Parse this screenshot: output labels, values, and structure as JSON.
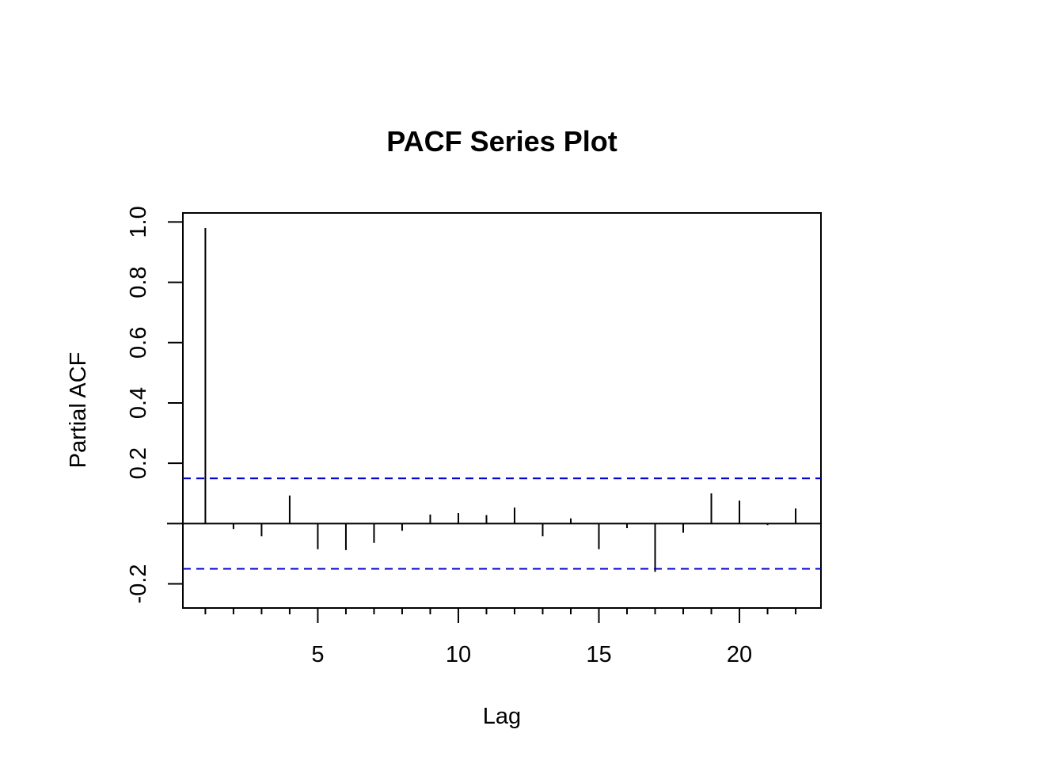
{
  "chart_data": {
    "type": "bar",
    "title": "PACF Series Plot",
    "xlabel": "Lag",
    "ylabel": "Partial ACF",
    "lags": [
      1,
      2,
      3,
      4,
      5,
      6,
      7,
      8,
      9,
      10,
      11,
      12,
      13,
      14,
      15,
      16,
      17,
      18,
      19,
      20,
      21,
      22
    ],
    "values": [
      0.98,
      -0.018,
      -0.042,
      0.093,
      -0.085,
      -0.088,
      -0.064,
      -0.024,
      0.03,
      0.035,
      0.028,
      0.053,
      -0.042,
      0.017,
      -0.085,
      -0.015,
      -0.16,
      -0.03,
      0.1,
      0.076,
      -0.005,
      0.05
    ],
    "confidence_bound": 0.15,
    "xlim": [
      0.2,
      22.9
    ],
    "ylim": [
      -0.28,
      1.03
    ],
    "xticks": [
      5,
      10,
      15,
      20
    ],
    "xminor_ticks": [
      1,
      2,
      3,
      4,
      5,
      6,
      7,
      8,
      9,
      10,
      11,
      12,
      13,
      14,
      15,
      16,
      17,
      18,
      19,
      20,
      21,
      22
    ],
    "yticks": [
      -0.2,
      0.2,
      0.4,
      0.6,
      0.8,
      1.0
    ],
    "ytick_labels": [
      "-0.2",
      "0.2",
      "0.4",
      "0.6",
      "0.8",
      "1.0"
    ],
    "xtick_labels": [
      "5",
      "10",
      "15",
      "20"
    ],
    "grid": false,
    "colors": {
      "bars": "#000000",
      "bounds": "#0000cc",
      "frame": "#000000"
    }
  }
}
